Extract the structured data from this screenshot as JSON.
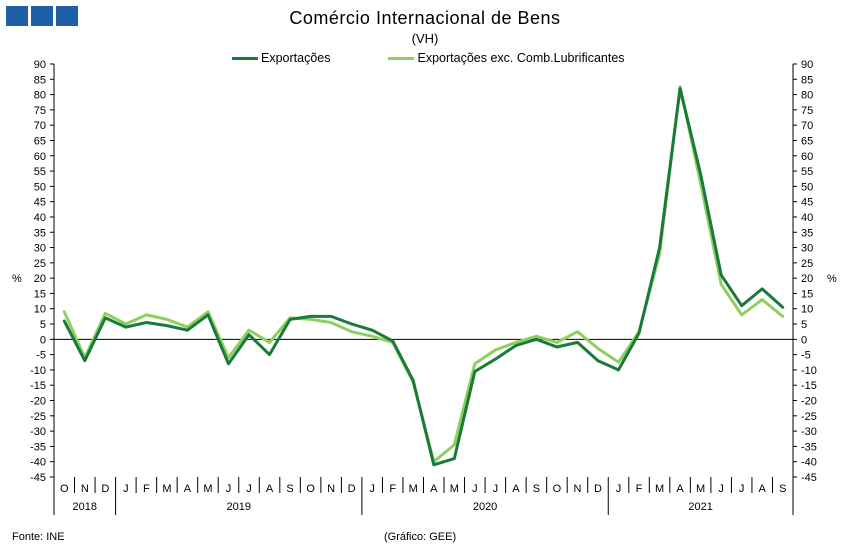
{
  "chart_data": {
    "type": "line",
    "title": "Comércio Internacional de Bens",
    "subtitle": "(VH)",
    "ylabel_left": "%",
    "ylabel_right": "%",
    "ylim": [
      -45,
      90
    ],
    "yticks": [
      90,
      85,
      80,
      75,
      70,
      65,
      60,
      55,
      50,
      45,
      40,
      35,
      30,
      25,
      20,
      15,
      10,
      5,
      0,
      -5,
      -10,
      -15,
      -20,
      -25,
      -30,
      -35,
      -40,
      -45
    ],
    "grid": false,
    "legend_position": "top",
    "categories": [
      "O",
      "N",
      "D",
      "J",
      "F",
      "M",
      "A",
      "M",
      "J",
      "J",
      "A",
      "S",
      "O",
      "N",
      "D",
      "J",
      "F",
      "M",
      "A",
      "M",
      "J",
      "J",
      "A",
      "S",
      "O",
      "N",
      "D",
      "J",
      "F",
      "M",
      "A",
      "M",
      "J",
      "J",
      "A",
      "S"
    ],
    "year_labels": [
      {
        "label": "2018",
        "start": 0,
        "end": 2
      },
      {
        "label": "2019",
        "start": 3,
        "end": 14
      },
      {
        "label": "2020",
        "start": 15,
        "end": 26
      },
      {
        "label": "2021",
        "start": 27,
        "end": 35
      }
    ],
    "series": [
      {
        "name": "Exportações",
        "color": "#1a7a3a",
        "values": [
          6,
          -7,
          7,
          4,
          5.5,
          4.5,
          3,
          8,
          -8,
          1.5,
          -5,
          6.5,
          7.5,
          7.5,
          5,
          3,
          -0.5,
          -13.5,
          -41,
          -39,
          -10.5,
          -6.5,
          -2,
          0,
          -2.5,
          -1,
          -7,
          -10,
          2,
          30,
          82,
          54,
          21,
          11,
          16.5,
          10.5
        ]
      },
      {
        "name": "Exportações exc. Comb.Lubrificantes",
        "color": "#8fcf5f",
        "values": [
          9,
          -6,
          8.5,
          5,
          8,
          6.5,
          4,
          9,
          -6,
          3,
          -1,
          7,
          6.5,
          5.5,
          2.5,
          1,
          -1,
          -14,
          -40,
          -34.5,
          -8,
          -3.5,
          -1,
          1,
          -1,
          2.5,
          -3,
          -7.5,
          2.5,
          28,
          82.5,
          51,
          18,
          8,
          13,
          7.5
        ]
      }
    ]
  },
  "footer": {
    "source": "Fonte: INE",
    "credit": "(Gráfico: GEE)"
  },
  "logo": {
    "color": "#1f5fa8"
  }
}
